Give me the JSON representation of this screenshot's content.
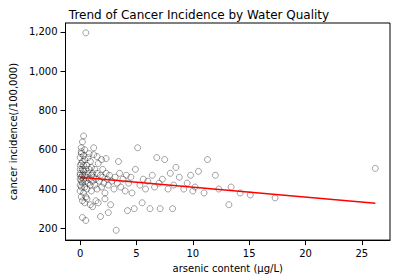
{
  "chart_data": {
    "type": "scatter",
    "title": "Trend of Cancer Incidence by Water Quality",
    "x_label": "arsenic content (μg/L)",
    "y_label": "cancer incidence(/100,000)",
    "xlim": [
      -1.3,
      27.5
    ],
    "xticks": [
      0,
      5,
      10,
      15,
      20,
      25
    ],
    "ylim": [
      140,
      1245
    ],
    "yticks": [
      200,
      400,
      600,
      800,
      1000,
      1200
    ],
    "grid": false,
    "series": [
      {
        "type": "scatter",
        "marker": "hollow",
        "color": "#000000",
        "x": [
          0.5,
          0.3,
          0.2,
          0.1,
          0.4,
          1.2,
          5.1,
          6.8,
          7.5,
          11.3,
          12.0,
          13.4,
          13.2,
          17.3,
          15.1,
          26.2,
          10.5,
          9.8,
          9.2,
          10.0,
          11.0,
          8.5,
          8.0,
          7.1,
          6.2,
          5.5,
          8.2,
          12.3,
          14.2,
          3.2,
          0.5,
          0.2,
          1.8,
          2.5,
          4.2,
          4.8,
          0.0,
          0.0,
          0.0,
          0.0,
          0.0,
          0.0,
          0.0,
          0.0,
          0.1,
          0.1,
          0.1,
          0.1,
          0.1,
          0.1,
          0.2,
          0.2,
          0.2,
          0.2,
          0.3,
          0.3,
          0.3,
          0.3,
          0.4,
          0.4,
          0.4,
          0.5,
          0.5,
          0.5,
          0.6,
          0.6,
          0.6,
          0.7,
          0.7,
          0.8,
          0.8,
          0.9,
          0.9,
          1.0,
          1.0,
          1.0,
          1.1,
          1.1,
          1.2,
          1.3,
          1.3,
          1.4,
          1.5,
          1.5,
          1.6,
          1.7,
          1.8,
          1.9,
          2.0,
          2.0,
          2.1,
          2.2,
          2.3,
          2.4,
          2.5,
          2.6,
          2.8,
          3.0,
          3.1,
          3.3,
          3.5,
          3.6,
          3.8,
          4.0,
          4.1,
          4.3,
          4.5,
          4.6,
          4.9,
          5.3,
          5.6,
          5.8,
          6.0,
          6.4,
          6.6,
          7.0,
          7.3,
          7.8,
          8.3,
          8.8,
          9.5,
          10.2,
          0.2,
          0.4,
          0.6,
          0.9,
          1.1,
          1.4,
          1.6,
          2.2,
          2.7,
          0.3,
          0.7,
          1.2,
          1.9,
          0.1,
          0.8,
          1.5,
          2.3,
          3.4
        ],
        "values": [
          1195,
          670,
          640,
          610,
          600,
          610,
          610,
          560,
          550,
          550,
          470,
          410,
          320,
          355,
          370,
          505,
          490,
          470,
          400,
          390,
          380,
          510,
          480,
          300,
          300,
          330,
          300,
          400,
          380,
          190,
          240,
          255,
          260,
          280,
          290,
          300,
          450,
          480,
          520,
          560,
          420,
          390,
          500,
          470,
          440,
          460,
          530,
          410,
          580,
          360,
          470,
          500,
          430,
          540,
          450,
          490,
          380,
          520,
          470,
          410,
          550,
          440,
          500,
          360,
          460,
          520,
          400,
          480,
          430,
          450,
          500,
          420,
          540,
          470,
          390,
          510,
          440,
          480,
          460,
          420,
          500,
          450,
          400,
          480,
          530,
          440,
          470,
          410,
          460,
          500,
          430,
          380,
          480,
          450,
          420,
          470,
          440,
          400,
          460,
          430,
          480,
          410,
          450,
          390,
          470,
          430,
          460,
          380,
          500,
          420,
          450,
          400,
          440,
          470,
          410,
          430,
          450,
          400,
          420,
          460,
          430,
          410,
          340,
          330,
          350,
          320,
          310,
          340,
          330,
          350,
          320,
          570,
          560,
          575,
          550,
          590,
          580,
          565,
          555,
          540
        ]
      },
      {
        "type": "line",
        "color": "#ff0000",
        "line_style": "solid",
        "x": [
          0.0,
          26.2
        ],
        "values": [
          460,
          328
        ]
      }
    ]
  }
}
